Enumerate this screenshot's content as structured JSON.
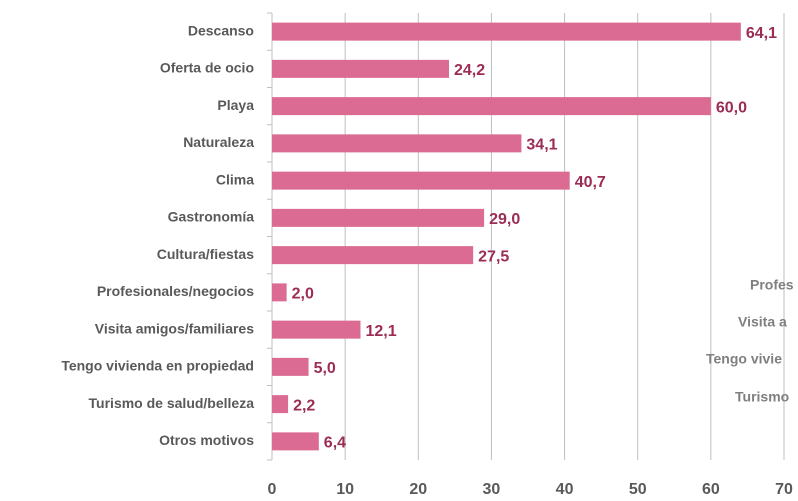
{
  "chart_data": {
    "type": "bar",
    "orientation": "horizontal",
    "categories": [
      "Descanso",
      "Oferta de ocio",
      "Playa",
      "Naturaleza",
      "Clima",
      "Gastronomía",
      "Cultura/fiestas",
      "Profesionales/negocios",
      "Visita amigos/familiares",
      "Tengo vivienda en propiedad",
      "Turismo de salud/belleza",
      "Otros motivos"
    ],
    "values": [
      64.1,
      24.2,
      60.0,
      34.1,
      40.7,
      29.0,
      27.5,
      2.0,
      12.1,
      5.0,
      2.2,
      6.4
    ],
    "value_labels": [
      "64,1",
      "24,2",
      "60,0",
      "34,1",
      "40,7",
      "29,0",
      "27,5",
      "2,0",
      "12,1",
      "5,0",
      "2,2",
      "6,4"
    ],
    "color": "#dc6b93",
    "label_color": "#9b2c55",
    "xlim": [
      0,
      70
    ],
    "xticks": [
      0,
      10,
      20,
      30,
      40,
      50,
      60,
      70
    ],
    "grid": true,
    "clipped_labels": [
      "Profes",
      "Visita a",
      "Tengo vivie",
      "Turismo"
    ]
  }
}
